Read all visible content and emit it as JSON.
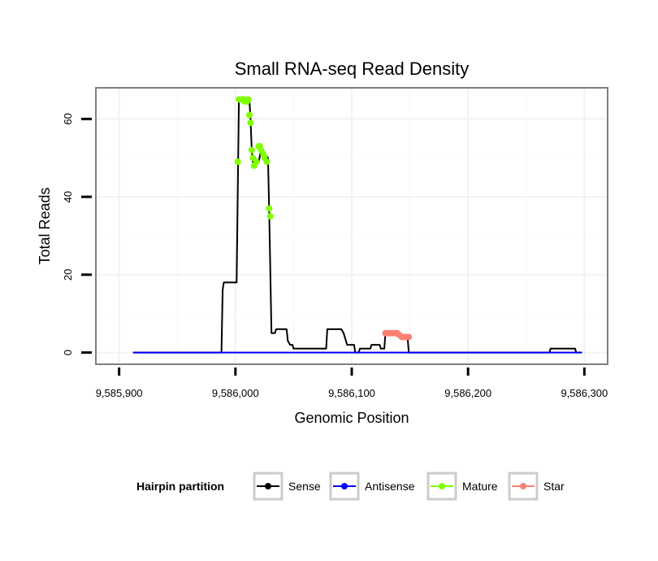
{
  "chart_data": {
    "type": "line",
    "title": "Small RNA-seq Read Density",
    "xlabel": "Genomic Position",
    "ylabel": "Total Reads",
    "xlim": [
      9585880,
      9586320
    ],
    "ylim": [
      -3,
      68
    ],
    "x_ticks": [
      9585900,
      9586000,
      9586100,
      9586200,
      9586300
    ],
    "x_tick_labels": [
      "9,585,900",
      "9,586,000",
      "9,586,100",
      "9,586,200",
      "9,586,300"
    ],
    "y_ticks": [
      0,
      20,
      40,
      60
    ],
    "y_tick_labels": [
      "0",
      "20",
      "40",
      "60"
    ],
    "grid": true,
    "legend": {
      "title": "Hairpin partition",
      "position": "bottom",
      "entries": [
        {
          "name": "Sense",
          "color": "#000000"
        },
        {
          "name": "Antisense",
          "color": "#0000ff"
        },
        {
          "name": "Mature",
          "color": "#7fff00"
        },
        {
          "name": "Star",
          "color": "#fa8072"
        }
      ]
    },
    "series": [
      {
        "name": "Sense",
        "color": "#000000",
        "points": [
          [
            9585912,
            0
          ],
          [
            9585988,
            0
          ],
          [
            9585989,
            16
          ],
          [
            9585990,
            18
          ],
          [
            9586001,
            18
          ],
          [
            9586003,
            65
          ],
          [
            9586012,
            65
          ],
          [
            9586013,
            60
          ],
          [
            9586014,
            52
          ],
          [
            9586015,
            49
          ],
          [
            9586020,
            49
          ],
          [
            9586022,
            52
          ],
          [
            9586028,
            50
          ],
          [
            9586029,
            37
          ],
          [
            9586031,
            5
          ],
          [
            9586034,
            5
          ],
          [
            9586035,
            6
          ],
          [
            9586044,
            6
          ],
          [
            9586045,
            3
          ],
          [
            9586047,
            2
          ],
          [
            9586049,
            2
          ],
          [
            9586050,
            1
          ],
          [
            9586078,
            1
          ],
          [
            9586079,
            6
          ],
          [
            9586091,
            6
          ],
          [
            9586093,
            5
          ],
          [
            9586096,
            2
          ],
          [
            9586102,
            2
          ],
          [
            9586103,
            0
          ],
          [
            9586106,
            0
          ],
          [
            9586107,
            1
          ],
          [
            9586116,
            1
          ],
          [
            9586117,
            2
          ],
          [
            9586124,
            2
          ],
          [
            9586125,
            1
          ],
          [
            9586128,
            1
          ],
          [
            9586129,
            5
          ],
          [
            9586141,
            5
          ],
          [
            9586142,
            4
          ],
          [
            9586148,
            4
          ],
          [
            9586149,
            0
          ],
          [
            9586270,
            0
          ],
          [
            9586271,
            1
          ],
          [
            9586292,
            1
          ],
          [
            9586293,
            0
          ],
          [
            9586298,
            0
          ]
        ]
      },
      {
        "name": "Antisense",
        "color": "#0000ff",
        "points": [
          [
            9585912,
            0
          ],
          [
            9586298,
            0
          ]
        ]
      },
      {
        "name": "Mature",
        "color": "#7fff00",
        "points": [
          [
            9586002,
            49
          ],
          [
            9586003,
            65
          ],
          [
            9586005,
            65
          ],
          [
            9586006,
            65
          ],
          [
            9586007,
            65
          ],
          [
            9586008,
            64.5
          ],
          [
            9586009,
            64.5
          ],
          [
            9586010,
            64.5
          ],
          [
            9586011,
            65
          ],
          [
            9586012,
            61
          ],
          [
            9586013,
            59
          ],
          [
            9586014,
            52
          ],
          [
            9586015,
            50
          ],
          [
            9586016,
            48
          ],
          [
            9586018,
            49
          ],
          [
            9586020,
            53
          ],
          [
            9586021,
            53
          ],
          [
            9586022,
            52
          ],
          [
            9586024,
            51
          ],
          [
            9586025,
            50
          ],
          [
            9586027,
            49
          ],
          [
            9586029,
            37
          ],
          [
            9586030,
            35
          ]
        ]
      },
      {
        "name": "Star",
        "color": "#fa8072",
        "points": [
          [
            9586129,
            5
          ],
          [
            9586131,
            5
          ],
          [
            9586133,
            5
          ],
          [
            9586135,
            5
          ],
          [
            9586137,
            5
          ],
          [
            9586139,
            5
          ],
          [
            9586141,
            4.5
          ],
          [
            9586143,
            4
          ],
          [
            9586145,
            4
          ],
          [
            9586147,
            4
          ],
          [
            9586149,
            4
          ]
        ]
      }
    ]
  }
}
